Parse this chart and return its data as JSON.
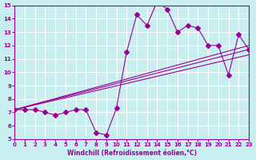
{
  "x": [
    0,
    1,
    2,
    3,
    4,
    5,
    6,
    7,
    8,
    9,
    10,
    11,
    12,
    13,
    14,
    15,
    16,
    17,
    18,
    19,
    20,
    21,
    22,
    23
  ],
  "y": [
    7.2,
    7.2,
    7.2,
    7.0,
    6.8,
    7.0,
    7.2,
    7.2,
    5.5,
    5.3,
    7.3,
    11.5,
    14.3,
    13.5,
    15.3,
    14.7,
    13.0,
    13.5,
    13.3,
    12.0,
    12.0,
    9.8,
    12.8,
    11.7
  ],
  "line_color": "#990099",
  "marker": "D",
  "marker_size": 3,
  "bg_color": "#c8eef0",
  "grid_color": "#ffffff",
  "xlim": [
    0,
    23
  ],
  "ylim": [
    5,
    15
  ],
  "yticks": [
    5,
    6,
    7,
    8,
    9,
    10,
    11,
    12,
    13,
    14,
    15
  ],
  "xticks": [
    0,
    1,
    2,
    3,
    4,
    5,
    6,
    7,
    8,
    9,
    10,
    11,
    12,
    13,
    14,
    15,
    16,
    17,
    18,
    19,
    20,
    21,
    22,
    23
  ],
  "xlabel": "Windchill (Refroidissement éolien,°C)",
  "title": "",
  "trend_line1": [
    7.2,
    11.7
  ],
  "trend_line2": [
    7.2,
    12.0
  ],
  "trend_line3": [
    7.2,
    11.3
  ]
}
